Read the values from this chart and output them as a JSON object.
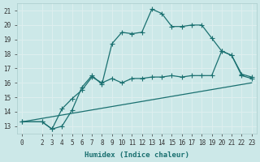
{
  "xlabel": "Humidex (Indice chaleur)",
  "xlim": [
    -0.5,
    23.5
  ],
  "ylim": [
    12.5,
    21.5
  ],
  "yticks": [
    13,
    14,
    15,
    16,
    17,
    18,
    19,
    20,
    21
  ],
  "xticks": [
    0,
    2,
    3,
    4,
    5,
    6,
    7,
    8,
    9,
    10,
    11,
    12,
    13,
    14,
    15,
    16,
    17,
    18,
    19,
    20,
    21,
    22,
    23
  ],
  "bg_color": "#cce8e8",
  "line_color": "#1a7070",
  "grid_color": "#ddeeee",
  "line1_x": [
    0,
    2,
    3,
    4,
    5,
    6,
    7,
    8,
    9,
    10,
    11,
    12,
    13,
    14,
    15,
    16,
    17,
    18,
    19,
    20,
    21,
    22,
    23
  ],
  "line1_y": [
    13.3,
    13.3,
    12.8,
    13.0,
    14.1,
    15.7,
    16.5,
    15.9,
    18.7,
    19.5,
    19.4,
    19.5,
    21.1,
    20.8,
    19.9,
    19.9,
    20.0,
    20.0,
    19.1,
    18.2,
    17.9,
    16.5,
    16.3
  ],
  "line2_x": [
    0,
    2,
    3,
    4,
    5,
    6,
    7,
    8,
    9,
    10,
    11,
    12,
    13,
    14,
    15,
    16,
    17,
    18,
    19,
    20,
    21,
    22,
    23
  ],
  "line2_y": [
    13.3,
    13.3,
    12.8,
    14.2,
    14.9,
    15.5,
    16.4,
    16.0,
    16.3,
    16.0,
    16.3,
    16.3,
    16.4,
    16.4,
    16.5,
    16.4,
    16.5,
    16.5,
    16.5,
    18.2,
    17.9,
    16.6,
    16.4
  ],
  "line3_x": [
    0,
    23
  ],
  "line3_y": [
    13.3,
    16.0
  ]
}
